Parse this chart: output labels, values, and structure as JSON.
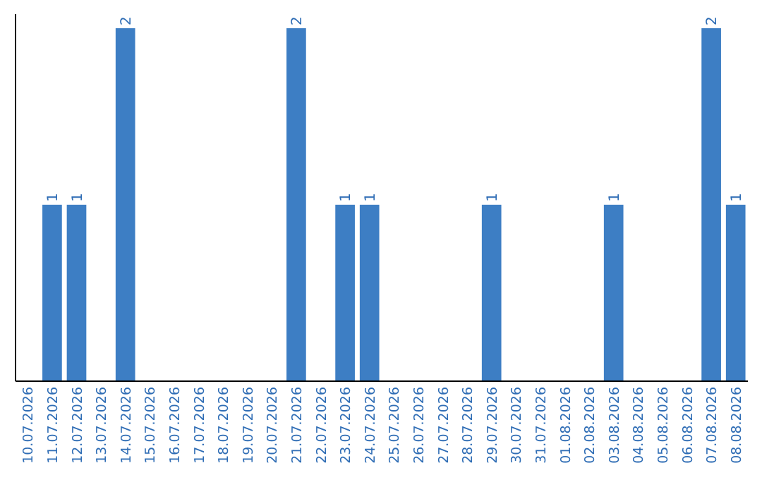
{
  "chart_data": {
    "type": "bar",
    "categories": [
      "10.07.2026",
      "11.07.2026",
      "12.07.2026",
      "13.07.2026",
      "14.07.2026",
      "15.07.2026",
      "16.07.2026",
      "17.07.2026",
      "18.07.2026",
      "19.07.2026",
      "20.07.2026",
      "21.07.2026",
      "22.07.2026",
      "23.07.2026",
      "24.07.2026",
      "25.07.2026",
      "26.07.2026",
      "27.07.2026",
      "28.07.2026",
      "29.07.2026",
      "30.07.2026",
      "31.07.2026",
      "01.08.2026",
      "02.08.2026",
      "03.08.2026",
      "04.08.2026",
      "05.08.2026",
      "06.08.2026",
      "07.08.2026",
      "08.08.2026"
    ],
    "values": [
      0,
      1,
      1,
      0,
      2,
      0,
      0,
      0,
      0,
      0,
      0,
      2,
      0,
      1,
      1,
      0,
      0,
      0,
      0,
      1,
      0,
      0,
      0,
      0,
      1,
      0,
      0,
      0,
      2,
      1
    ],
    "value_labels": [
      null,
      "1",
      "1",
      null,
      "2",
      null,
      null,
      null,
      null,
      null,
      null,
      "2",
      null,
      "1",
      "1",
      null,
      null,
      null,
      null,
      "1",
      null,
      null,
      null,
      null,
      "1",
      null,
      null,
      null,
      "2",
      "1"
    ],
    "color": "#3d7ec4"
  }
}
